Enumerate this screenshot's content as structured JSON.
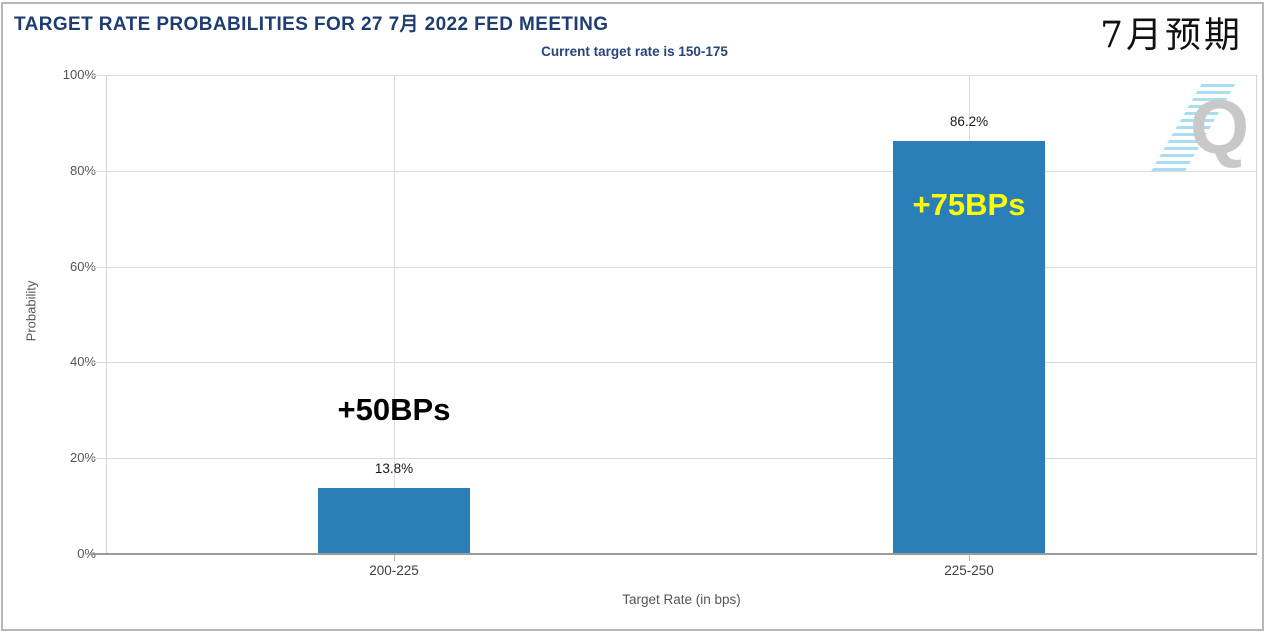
{
  "header": {
    "title": "TARGET RATE PROBABILITIES FOR 27 7月 2022 FED MEETING",
    "subtitle": "Current target rate is 150-175",
    "side_note": "7月预期"
  },
  "watermark": {
    "letter": "Q"
  },
  "chart_data": {
    "type": "bar",
    "title": "TARGET RATE PROBABILITIES FOR 27 7月 2022 FED MEETING",
    "subtitle": "Current target rate is 150-175",
    "categories": [
      "200-225",
      "225-250"
    ],
    "values": [
      13.8,
      86.2
    ],
    "value_labels": [
      "13.8%",
      "86.2%"
    ],
    "bar_annotations": [
      {
        "text": "+50BPs",
        "color": "#000000",
        "position": "above"
      },
      {
        "text": "+75BPs",
        "color": "#ffff00",
        "position": "inside"
      }
    ],
    "xlabel": "Target Rate (in bps)",
    "ylabel": "Probability",
    "ylim": [
      0,
      100
    ],
    "yticks": [
      0,
      20,
      40,
      60,
      80,
      100
    ],
    "ytick_labels": [
      "0%",
      "20%",
      "40%",
      "60%",
      "80%",
      "100%"
    ],
    "grid": true,
    "legend": "none",
    "bar_color": "#2a7fb9"
  }
}
